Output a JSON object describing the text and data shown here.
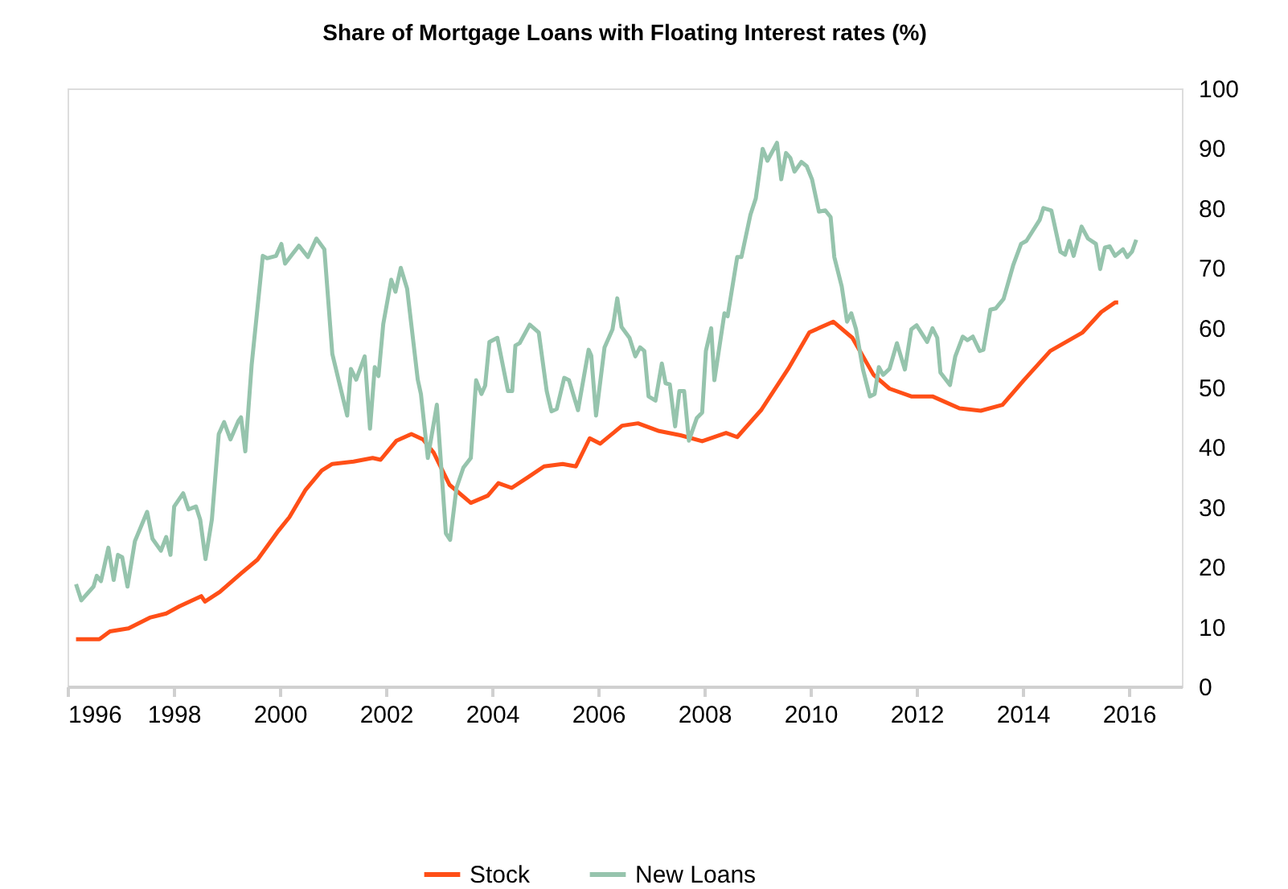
{
  "chart_data": {
    "type": "line",
    "title": "Share of Mortgage Loans with Floating Interest rates (%)",
    "xlim": [
      1996,
      2017
    ],
    "xticks": [
      1996,
      1998,
      2000,
      2002,
      2004,
      2006,
      2008,
      2010,
      2012,
      2014,
      2016
    ],
    "ylim": [
      0,
      100
    ],
    "yticks": [
      0,
      10,
      20,
      30,
      40,
      50,
      60,
      70,
      80,
      90,
      100
    ],
    "grid": false,
    "legend": "bottom",
    "marker": "none",
    "line_style": "solid",
    "series": [
      {
        "name": "Stock",
        "color": "#ff4f17",
        "x": [
          1996.16,
          1996.6,
          1996.8,
          1997.15,
          1997.55,
          1997.86,
          1998.11,
          1998.52,
          1998.59,
          1998.87,
          1999.27,
          1999.58,
          1999.98,
          2000.18,
          2000.48,
          2000.79,
          2000.99,
          2001.39,
          2001.75,
          2001.9,
          2002.2,
          2002.48,
          2002.7,
          2002.9,
          2003.2,
          2003.6,
          2003.92,
          2004.12,
          2004.37,
          2004.68,
          2004.98,
          2005.33,
          2005.58,
          2005.84,
          2006.04,
          2006.45,
          2006.75,
          2007.15,
          2007.55,
          2007.96,
          2008.41,
          2008.62,
          2009.07,
          2009.58,
          2009.98,
          2010.43,
          2010.79,
          2011.19,
          2011.49,
          2011.9,
          2012.3,
          2012.81,
          2013.21,
          2013.62,
          2014.02,
          2014.52,
          2015.13,
          2015.48,
          2015.74,
          2015.8
        ],
        "values": [
          7.9,
          7.9,
          9.2,
          9.7,
          11.5,
          12.2,
          13.4,
          15.1,
          14.2,
          15.8,
          18.9,
          21.2,
          26.1,
          28.3,
          32.8,
          36.1,
          37.2,
          37.6,
          38.2,
          37.9,
          41.1,
          42.2,
          41.3,
          39.1,
          33.7,
          30.7,
          31.9,
          34.0,
          33.2,
          35.0,
          36.8,
          37.2,
          36.8,
          41.5,
          40.6,
          43.6,
          44.0,
          42.7,
          42.0,
          41.0,
          42.4,
          41.7,
          46.2,
          53.1,
          59.2,
          61.0,
          58.3,
          52.1,
          49.8,
          48.5,
          48.5,
          46.5,
          46.1,
          47.1,
          51.2,
          56.1,
          59.2,
          62.6,
          64.2,
          64.2
        ]
      },
      {
        "name": "New Loans",
        "color": "#96c4ad",
        "x": [
          1996.16,
          1996.26,
          1996.49,
          1996.55,
          1996.63,
          1996.77,
          1996.87,
          1996.95,
          1997.03,
          1997.13,
          1997.27,
          1997.5,
          1997.6,
          1997.76,
          1997.86,
          1997.94,
          1998.01,
          1998.18,
          1998.28,
          1998.42,
          1998.5,
          1998.6,
          1998.72,
          1998.85,
          1998.95,
          1999.07,
          1999.22,
          1999.27,
          1999.35,
          1999.47,
          1999.68,
          1999.76,
          1999.93,
          2000.03,
          2000.1,
          2000.23,
          2000.36,
          2000.53,
          2000.69,
          2000.84,
          2000.99,
          2001.27,
          2001.34,
          2001.44,
          2001.6,
          2001.7,
          2001.79,
          2001.86,
          2001.95,
          2002.1,
          2002.18,
          2002.28,
          2002.4,
          2002.6,
          2002.66,
          2002.79,
          2002.96,
          2003.13,
          2003.21,
          2003.33,
          2003.46,
          2003.6,
          2003.7,
          2003.8,
          2003.87,
          2003.95,
          2004.1,
          2004.3,
          2004.38,
          2004.44,
          2004.52,
          2004.71,
          2004.88,
          2005.03,
          2005.12,
          2005.22,
          2005.36,
          2005.45,
          2005.62,
          2005.82,
          2005.87,
          2005.96,
          2006.12,
          2006.27,
          2006.36,
          2006.44,
          2006.59,
          2006.7,
          2006.79,
          2006.87,
          2006.95,
          2007.08,
          2007.2,
          2007.27,
          2007.35,
          2007.45,
          2007.53,
          2007.62,
          2007.71,
          2007.86,
          2007.96,
          2008.03,
          2008.13,
          2008.19,
          2008.38,
          2008.44,
          2008.62,
          2008.7,
          2008.87,
          2008.97,
          2009.1,
          2009.19,
          2009.37,
          2009.45,
          2009.54,
          2009.62,
          2009.7,
          2009.83,
          2009.93,
          2010.03,
          2010.16,
          2010.28,
          2010.38,
          2010.45,
          2010.59,
          2010.69,
          2010.77,
          2010.86,
          2010.99,
          2011.12,
          2011.21,
          2011.29,
          2011.37,
          2011.49,
          2011.63,
          2011.78,
          2011.9,
          2012.0,
          2012.2,
          2012.3,
          2012.39,
          2012.45,
          2012.63,
          2012.73,
          2012.87,
          2012.96,
          2013.06,
          2013.19,
          2013.26,
          2013.39,
          2013.49,
          2013.64,
          2013.82,
          2013.97,
          2014.07,
          2014.32,
          2014.39,
          2014.54,
          2014.71,
          2014.8,
          2014.88,
          2014.96,
          2015.11,
          2015.23,
          2015.38,
          2015.46,
          2015.55,
          2015.64,
          2015.74,
          2015.89,
          2015.97,
          2016.06,
          2016.14
        ],
        "values": [
          17.1,
          14.4,
          16.7,
          18.5,
          17.6,
          23.2,
          17.8,
          22.0,
          21.6,
          16.7,
          24.3,
          29.2,
          24.7,
          22.7,
          25.0,
          22.0,
          30.1,
          32.3,
          29.6,
          30.1,
          27.9,
          21.3,
          27.9,
          42.2,
          44.2,
          41.3,
          44.4,
          45.0,
          39.3,
          53.8,
          72.0,
          71.6,
          72.0,
          74.0,
          70.7,
          72.2,
          73.7,
          71.8,
          74.9,
          73.1,
          55.6,
          45.3,
          53.1,
          51.3,
          55.2,
          43.1,
          53.4,
          51.9,
          60.6,
          68.0,
          66.0,
          70.0,
          66.5,
          51.3,
          48.9,
          38.2,
          47.1,
          25.6,
          24.5,
          33.2,
          36.6,
          38.2,
          51.2,
          48.9,
          50.3,
          57.6,
          58.3,
          49.4,
          49.4,
          57.0,
          57.4,
          60.5,
          59.2,
          49.4,
          46.0,
          46.4,
          51.6,
          51.2,
          46.2,
          56.3,
          55.3,
          45.3,
          56.7,
          59.7,
          64.9,
          60.1,
          58.3,
          55.2,
          56.7,
          56.1,
          48.5,
          47.8,
          54.0,
          50.7,
          50.5,
          43.5,
          49.4,
          49.4,
          41.1,
          44.9,
          45.8,
          56.1,
          59.9,
          51.2,
          62.4,
          61.9,
          71.8,
          71.8,
          78.9,
          81.6,
          89.9,
          87.9,
          90.9,
          84.8,
          89.2,
          88.4,
          86.1,
          87.7,
          87.0,
          84.8,
          79.4,
          79.6,
          78.5,
          71.8,
          66.9,
          61.0,
          62.4,
          59.7,
          53.0,
          48.5,
          48.9,
          53.4,
          52.1,
          53.1,
          57.4,
          53.0,
          59.7,
          60.4,
          57.6,
          59.9,
          58.3,
          52.5,
          50.4,
          55.2,
          58.5,
          57.9,
          58.5,
          56.1,
          56.3,
          63.0,
          63.2,
          64.8,
          70.4,
          74.0,
          74.5,
          78.0,
          80.0,
          79.6,
          72.7,
          72.2,
          74.5,
          72.0,
          76.9,
          74.9,
          74.0,
          69.8,
          73.4,
          73.6,
          72.0,
          73.1,
          71.8,
          72.7,
          74.7
        ]
      }
    ]
  }
}
